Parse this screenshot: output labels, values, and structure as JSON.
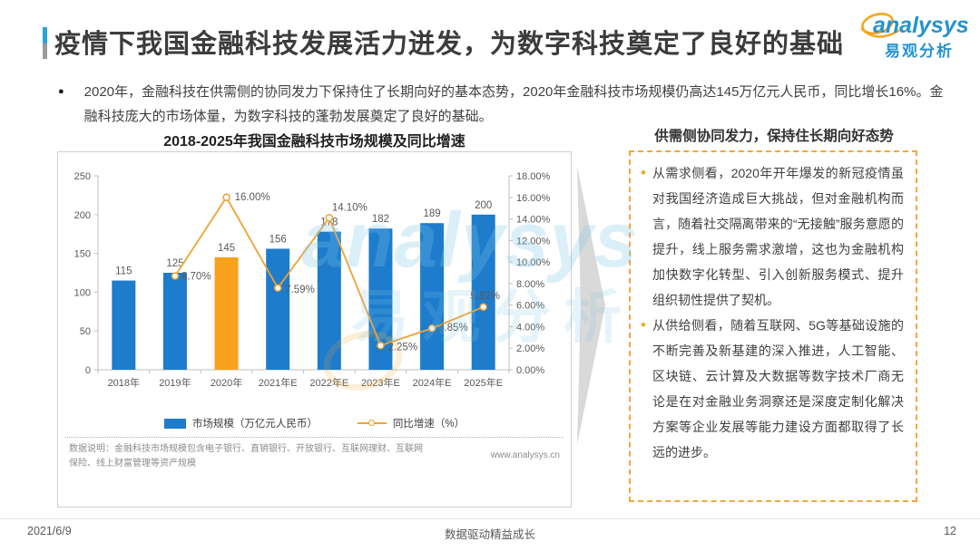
{
  "header": {
    "title": "疫情下我国金融科技发展活力迸发，为数字科技奠定了良好的基础",
    "logo": {
      "brand": "analysys",
      "brand_cn": "易观分析"
    }
  },
  "intro": {
    "bullet_glyph": "●",
    "text": "2020年，金融科技在供需侧的协同发力下保持住了长期向好的基本态势，2020年金融科技市场规模仍高达145万亿元人民币，同比增长16%。金融科技庞大的市场体量，为数字科技的蓬勃发展奠定了良好的基础。"
  },
  "chart_data": {
    "type": "bar+line",
    "title": "2018-2025年我国金融科技市场规模及同比增速",
    "categories": [
      "2018年",
      "2019年",
      "2020年",
      "2021年E",
      "2022年E",
      "2023年E",
      "2024年E",
      "2025年E"
    ],
    "series": [
      {
        "name": "市场规模（万亿元人民币）",
        "type": "bar",
        "values": [
          115,
          125,
          145,
          156,
          178,
          182,
          189,
          200
        ]
      },
      {
        "name": "同比增速（%）",
        "type": "line",
        "values": [
          null,
          8.7,
          16.0,
          7.59,
          14.1,
          2.25,
          3.85,
          5.82
        ],
        "labels": [
          "",
          "8.70%",
          "16.00%",
          "7.59%",
          "14.10%",
          "2.25%",
          "3.85%",
          "5.82%"
        ]
      }
    ],
    "left_axis": {
      "min": 0,
      "max": 250,
      "step": 50
    },
    "right_axis": {
      "min": 0,
      "max": 18,
      "step": 2,
      "format": "percent2"
    },
    "colors": {
      "bar": "#1e7ccc",
      "bar_highlight": "#f8a11e",
      "bar_highlight_index": 2,
      "line": "#f0a232"
    },
    "legend_position": "bottom",
    "grid": false,
    "footnote": "数据说明：金融科技市场规模包含电子银行、直销银行、开放银行、互联网理财、互联网保险、线上财富管理等资产规模",
    "source": "www.analysys.cn"
  },
  "side_panel": {
    "title": "供需侧协同发力，保持住长期向好态势",
    "bullet_glyph": "•",
    "bullets": [
      "从需求侧看，2020年开年爆发的新冠疫情虽对我国经济造成巨大挑战，但对金融机构而言，随着社交隔离带来的“无接触”服务意愿的提升，线上服务需求激增，这也为金融机构加快数字化转型、引入创新服务模式、提升组织韧性提供了契机。",
      "从供给侧看，随着互联网、5G等基础设施的不断完善及新基建的深入推进，人工智能、区块链、云计算及大数据等数字技术厂商无论是在对金融业务洞察还是深度定制化解决方案等企业发展等能力建设方面都取得了长远的进步。"
    ]
  },
  "watermark": {
    "line1": "analysys",
    "line2": "易观分析"
  },
  "footer": {
    "date": "2021/6/9",
    "center": "数据驱动精益成长",
    "page": "12"
  }
}
